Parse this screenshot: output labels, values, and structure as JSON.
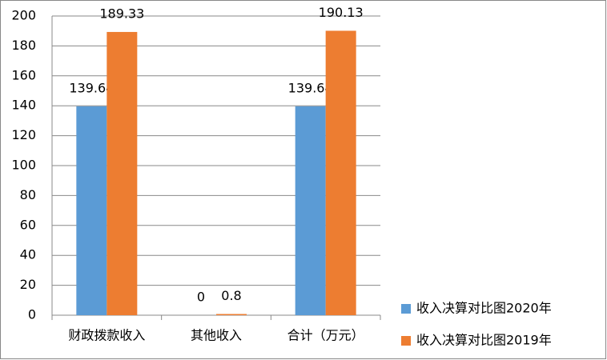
{
  "chart_data": {
    "type": "bar",
    "categories": [
      "财政拨款收入",
      "其他收入",
      "合计（万元）"
    ],
    "series": [
      {
        "name": "收入决算对比图2020年",
        "color": "#5b9bd5",
        "values": [
          139.64,
          0,
          139.64
        ]
      },
      {
        "name": "收入决算对比图2019年",
        "color": "#ed7d31",
        "values": [
          189.33,
          0.8,
          190.13
        ]
      }
    ],
    "ylim": [
      0,
      200
    ],
    "yticks": [
      0,
      20,
      40,
      60,
      80,
      100,
      120,
      140,
      160,
      180,
      200
    ],
    "grid": true,
    "legend": "right"
  }
}
